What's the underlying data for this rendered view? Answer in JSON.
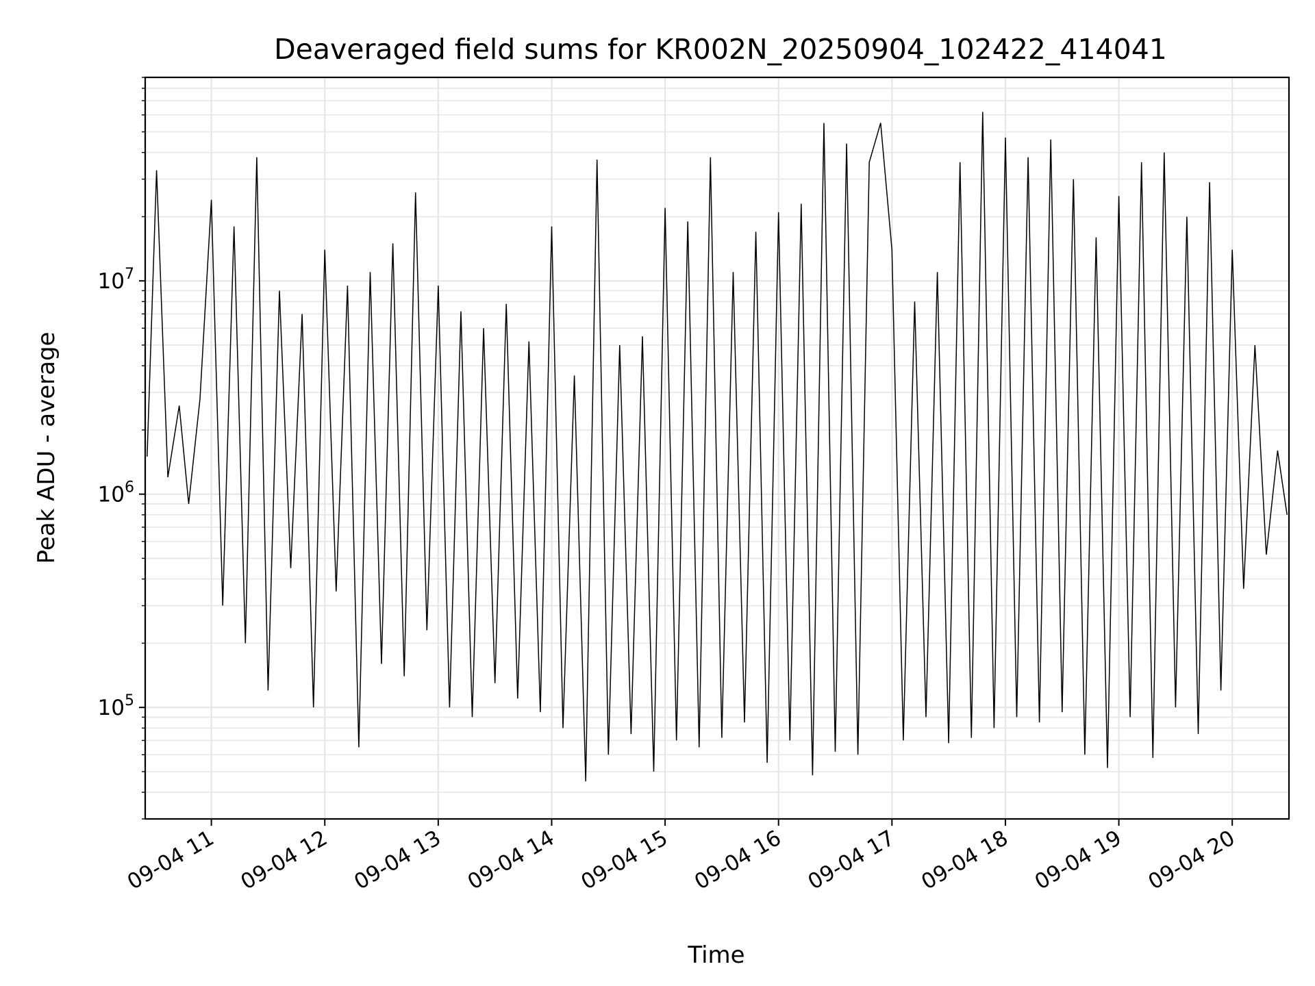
{
  "chart_data": {
    "type": "line",
    "title": "Deaveraged field sums for KR002N_20250904_102422_414041",
    "xlabel": "Time",
    "ylabel": "Peak ADU - average",
    "yscale": "log",
    "ylim": [
      30000,
      90000000
    ],
    "xlim": [
      "09-04 10:25",
      "09-04 20:30"
    ],
    "grid": true,
    "line_color": "#000000",
    "grid_color": "#e6e6e6",
    "x_ticks": [
      {
        "label": "09-04 11",
        "hour": 11
      },
      {
        "label": "09-04 12",
        "hour": 12
      },
      {
        "label": "09-04 13",
        "hour": 13
      },
      {
        "label": "09-04 14",
        "hour": 14
      },
      {
        "label": "09-04 15",
        "hour": 15
      },
      {
        "label": "09-04 16",
        "hour": 16
      },
      {
        "label": "09-04 17",
        "hour": 17
      },
      {
        "label": "09-04 18",
        "hour": 18
      },
      {
        "label": "09-04 19",
        "hour": 19
      },
      {
        "label": "09-04 20",
        "hour": 20
      }
    ],
    "y_ticks": [
      {
        "base": "10",
        "exp": "5",
        "value": 100000
      },
      {
        "base": "10",
        "exp": "6",
        "value": 1000000
      },
      {
        "base": "10",
        "exp": "7",
        "value": 10000000
      }
    ],
    "series": [
      {
        "x": [
          "09-04 10:26",
          "09-04 10:31",
          "09-04 10:37",
          "09-04 10:43",
          "09-04 10:48",
          "09-04 10:54",
          "09-04 11:00",
          "09-04 11:06",
          "09-04 11:12",
          "09-04 11:18",
          "09-04 11:24",
          "09-04 11:30",
          "09-04 11:36",
          "09-04 11:42",
          "09-04 11:48",
          "09-04 11:54",
          "09-04 12:00",
          "09-04 12:06",
          "09-04 12:12",
          "09-04 12:18",
          "09-04 12:24",
          "09-04 12:30",
          "09-04 12:36",
          "09-04 12:42",
          "09-04 12:48",
          "09-04 12:54",
          "09-04 13:00",
          "09-04 13:06",
          "09-04 13:12",
          "09-04 13:18",
          "09-04 13:24",
          "09-04 13:30",
          "09-04 13:36",
          "09-04 13:42",
          "09-04 13:48",
          "09-04 13:54",
          "09-04 14:00",
          "09-04 14:06",
          "09-04 14:12",
          "09-04 14:18",
          "09-04 14:24",
          "09-04 14:30",
          "09-04 14:36",
          "09-04 14:42",
          "09-04 14:48",
          "09-04 14:54",
          "09-04 15:00",
          "09-04 15:06",
          "09-04 15:12",
          "09-04 15:18",
          "09-04 15:24",
          "09-04 15:30",
          "09-04 15:36",
          "09-04 15:42",
          "09-04 15:48",
          "09-04 15:54",
          "09-04 16:00",
          "09-04 16:06",
          "09-04 16:12",
          "09-04 16:18",
          "09-04 16:24",
          "09-04 16:30",
          "09-04 16:36",
          "09-04 16:42",
          "09-04 16:48",
          "09-04 16:54",
          "09-04 17:00",
          "09-04 17:06",
          "09-04 17:12",
          "09-04 17:18",
          "09-04 17:24",
          "09-04 17:30",
          "09-04 17:36",
          "09-04 17:42",
          "09-04 17:48",
          "09-04 17:54",
          "09-04 18:00",
          "09-04 18:06",
          "09-04 18:12",
          "09-04 18:18",
          "09-04 18:24",
          "09-04 18:30",
          "09-04 18:36",
          "09-04 18:42",
          "09-04 18:48",
          "09-04 18:54",
          "09-04 19:00",
          "09-04 19:06",
          "09-04 19:12",
          "09-04 19:18",
          "09-04 19:24",
          "09-04 19:30",
          "09-04 19:36",
          "09-04 19:42",
          "09-04 19:48",
          "09-04 19:54",
          "09-04 20:00",
          "09-04 20:06",
          "09-04 20:12",
          "09-04 20:18",
          "09-04 20:24",
          "09-04 20:29"
        ],
        "values": [
          1500000,
          33000000,
          1200000,
          2600000,
          900000,
          2800000,
          24000000,
          300000,
          18000000,
          200000,
          38000000,
          120000,
          9000000,
          450000,
          7000000,
          100000,
          14000000,
          350000,
          9500000,
          65000,
          11000000,
          160000,
          15000000,
          140000,
          26000000,
          230000,
          9500000,
          100000,
          7200000,
          90000,
          6000000,
          130000,
          7800000,
          110000,
          5200000,
          95000,
          18000000,
          80000,
          3600000,
          45000,
          37000000,
          60000,
          5000000,
          75000,
          5500000,
          50000,
          22000000,
          70000,
          19000000,
          65000,
          38000000,
          72000,
          11000000,
          85000,
          17000000,
          55000,
          21000000,
          70000,
          23000000,
          48000,
          55000000,
          62000,
          44000000,
          60000,
          36000000,
          55000000,
          14000000,
          70000,
          8000000,
          90000,
          11000000,
          68000,
          36000000,
          72000,
          62000000,
          80000,
          47000000,
          90000,
          38000000,
          85000,
          46000000,
          95000,
          30000000,
          60000,
          16000000,
          52000,
          25000000,
          90000,
          36000000,
          58000,
          40000000,
          100000,
          20000000,
          75000,
          29000000,
          120000,
          14000000,
          360000,
          5000000,
          520000,
          1600000,
          800000
        ]
      }
    ]
  }
}
